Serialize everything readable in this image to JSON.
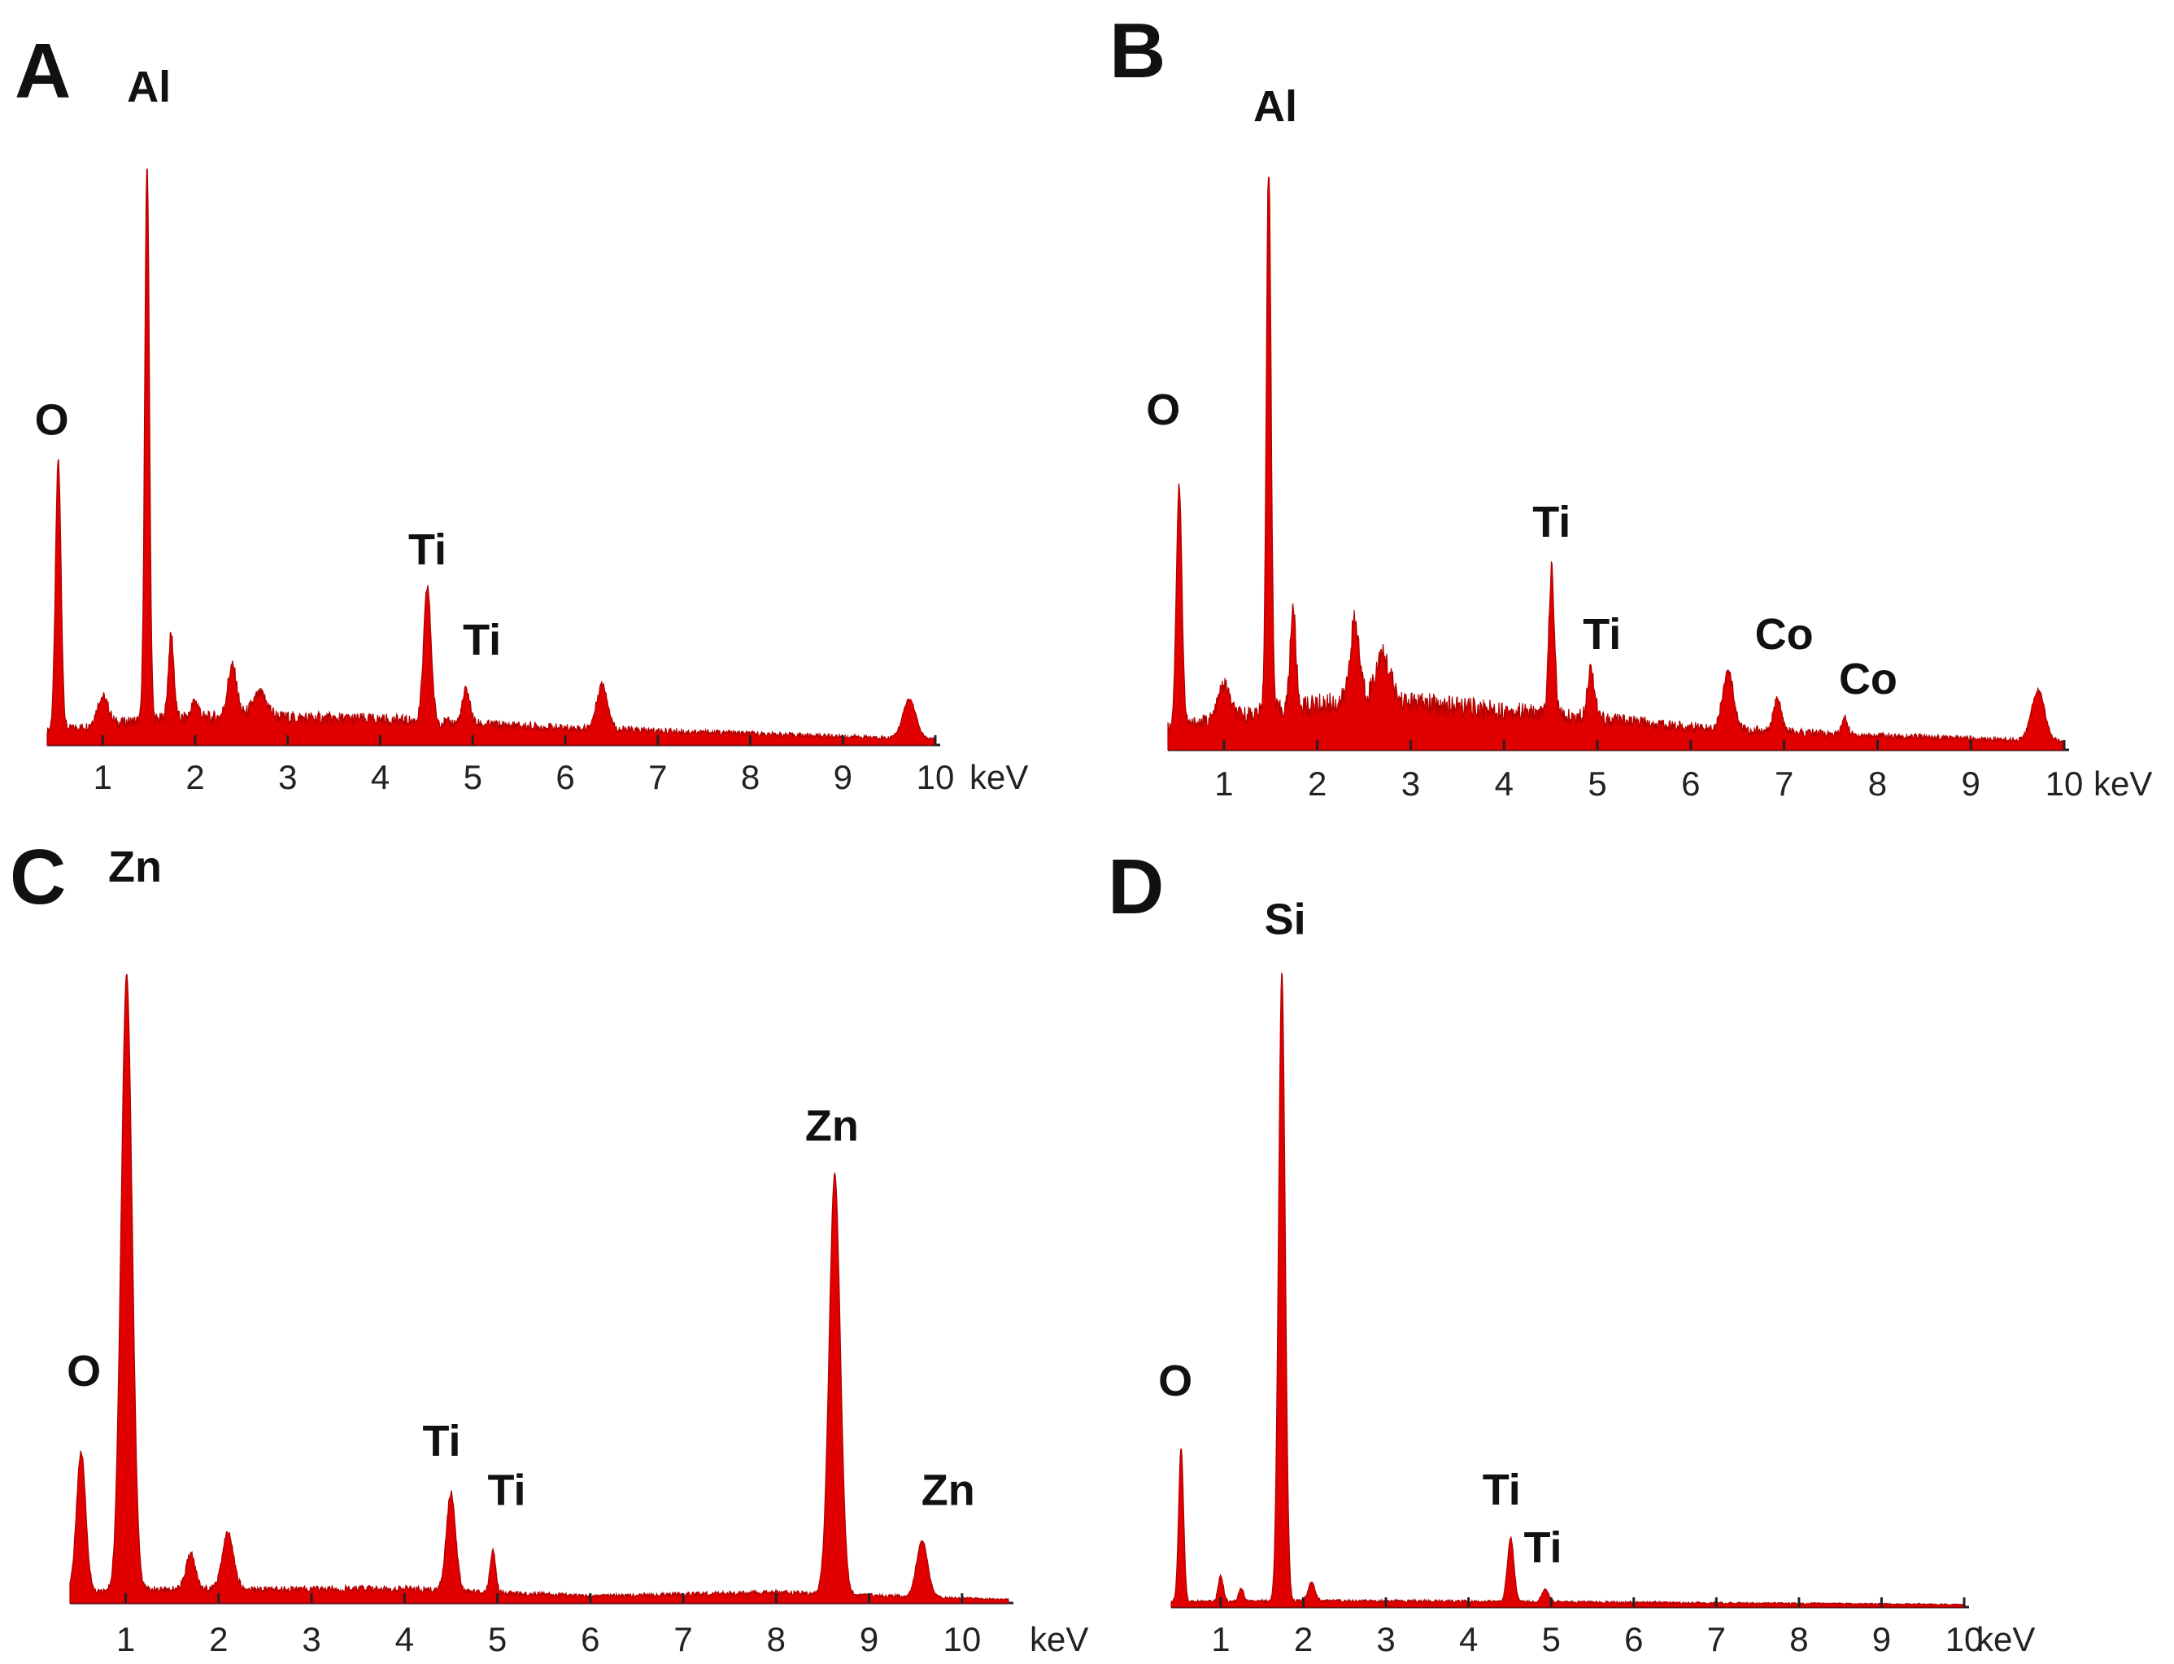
{
  "chart_data": [
    {
      "panel": "A",
      "type": "area",
      "xunit": "keV",
      "xlim": [
        0.4,
        10.0
      ],
      "ylim": [
        0,
        100
      ],
      "xticks": [
        "1",
        "2",
        "3",
        "4",
        "5",
        "6",
        "7",
        "8",
        "9",
        "10"
      ],
      "color": "#e00000",
      "peaks": [
        {
          "x": 0.52,
          "y": 48,
          "w": 0.03
        },
        {
          "x": 1.0,
          "y": 5,
          "w": 0.06
        },
        {
          "x": 1.48,
          "y": 100,
          "w": 0.025
        },
        {
          "x": 1.74,
          "y": 15,
          "w": 0.03
        },
        {
          "x": 2.0,
          "y": 3,
          "w": 0.04
        },
        {
          "x": 2.4,
          "y": 9,
          "w": 0.05
        },
        {
          "x": 2.7,
          "y": 4,
          "w": 0.08
        },
        {
          "x": 4.51,
          "y": 24,
          "w": 0.04
        },
        {
          "x": 4.93,
          "y": 6,
          "w": 0.04
        },
        {
          "x": 6.4,
          "y": 8,
          "w": 0.06
        },
        {
          "x": 9.72,
          "y": 7,
          "w": 0.07
        }
      ],
      "baseline": [
        [
          0.4,
          2.5
        ],
        [
          1.5,
          4.5
        ],
        [
          2.5,
          5
        ],
        [
          4.0,
          4.5
        ],
        [
          6.0,
          3
        ],
        [
          8.0,
          2
        ],
        [
          10.0,
          1
        ]
      ],
      "annotations": [
        {
          "text": "O",
          "x": 0.45,
          "y": 55
        },
        {
          "text": "Al",
          "x": 1.5,
          "y": 114
        },
        {
          "text": "Ti",
          "x": 4.51,
          "y": 32
        },
        {
          "text": "Ti",
          "x": 5.1,
          "y": 16
        }
      ]
    },
    {
      "panel": "B",
      "type": "area",
      "xunit": "keV",
      "xlim": [
        0.4,
        10.0
      ],
      "ylim": [
        0,
        100
      ],
      "xticks": [
        "1",
        "2",
        "3",
        "4",
        "5",
        "6",
        "7",
        "8",
        "9",
        "10"
      ],
      "color": "#e00000",
      "peaks": [
        {
          "x": 0.52,
          "y": 43,
          "w": 0.03
        },
        {
          "x": 1.0,
          "y": 6,
          "w": 0.06
        },
        {
          "x": 1.48,
          "y": 100,
          "w": 0.025
        },
        {
          "x": 1.74,
          "y": 18,
          "w": 0.03
        },
        {
          "x": 2.4,
          "y": 14,
          "w": 0.05
        },
        {
          "x": 2.7,
          "y": 8,
          "w": 0.08
        },
        {
          "x": 4.51,
          "y": 26,
          "w": 0.03
        },
        {
          "x": 4.93,
          "y": 9,
          "w": 0.04
        },
        {
          "x": 6.4,
          "y": 10,
          "w": 0.06
        },
        {
          "x": 6.93,
          "y": 6,
          "w": 0.04
        },
        {
          "x": 7.65,
          "y": 3,
          "w": 0.03
        },
        {
          "x": 9.72,
          "y": 9,
          "w": 0.07
        }
      ],
      "baseline": [
        [
          0.4,
          4
        ],
        [
          1.5,
          7
        ],
        [
          2.5,
          9
        ],
        [
          4.0,
          7
        ],
        [
          6.0,
          4
        ],
        [
          8.0,
          2.5
        ],
        [
          10.0,
          1.5
        ]
      ],
      "annotations": [
        {
          "text": "O",
          "x": 0.35,
          "y": 58
        },
        {
          "text": "Al",
          "x": 1.55,
          "y": 112
        },
        {
          "text": "Ti",
          "x": 4.51,
          "y": 38
        },
        {
          "text": "Ti",
          "x": 5.05,
          "y": 18
        },
        {
          "text": "Co",
          "x": 7.0,
          "y": 18
        },
        {
          "text": "Co",
          "x": 7.9,
          "y": 10
        }
      ]
    },
    {
      "panel": "C",
      "type": "area",
      "xunit": "keV",
      "xlim": [
        0.4,
        10.5
      ],
      "ylim": [
        0,
        100
      ],
      "xticks": [
        "1",
        "2",
        "3",
        "4",
        "5",
        "6",
        "7",
        "8",
        "9",
        "10"
      ],
      "color": "#e00000",
      "peaks": [
        {
          "x": 0.52,
          "y": 20,
          "w": 0.05
        },
        {
          "x": 1.01,
          "y": 88,
          "w": 0.06
        },
        {
          "x": 1.7,
          "y": 5,
          "w": 0.05
        },
        {
          "x": 2.1,
          "y": 8,
          "w": 0.06
        },
        {
          "x": 4.5,
          "y": 14,
          "w": 0.05
        },
        {
          "x": 4.95,
          "y": 6,
          "w": 0.03
        },
        {
          "x": 8.63,
          "y": 60,
          "w": 0.06
        },
        {
          "x": 9.57,
          "y": 8,
          "w": 0.06
        }
      ],
      "baseline": [
        [
          0.4,
          1.5
        ],
        [
          1.5,
          2
        ],
        [
          4.0,
          2
        ],
        [
          6.0,
          1
        ],
        [
          8.0,
          1.5
        ],
        [
          10.5,
          0.5
        ]
      ],
      "annotations": [
        {
          "text": "O",
          "x": 0.55,
          "y": 31
        },
        {
          "text": "Zn",
          "x": 1.1,
          "y": 103
        },
        {
          "text": "Ti",
          "x": 4.4,
          "y": 21
        },
        {
          "text": "Ti",
          "x": 5.1,
          "y": 14
        },
        {
          "text": "Zn",
          "x": 8.6,
          "y": 66
        },
        {
          "text": "Zn",
          "x": 9.85,
          "y": 14
        }
      ]
    },
    {
      "panel": "D",
      "type": "area",
      "xunit": "keV",
      "xlim": [
        0.4,
        10.0
      ],
      "ylim": [
        0,
        100
      ],
      "xticks": [
        "1",
        "2",
        "3",
        "4",
        "5",
        "6",
        "7",
        "8",
        "9",
        "10"
      ],
      "color": "#e00000",
      "peaks": [
        {
          "x": 0.52,
          "y": 24,
          "w": 0.03
        },
        {
          "x": 1.0,
          "y": 4,
          "w": 0.03
        },
        {
          "x": 1.25,
          "y": 2,
          "w": 0.03
        },
        {
          "x": 1.74,
          "y": 98,
          "w": 0.04
        },
        {
          "x": 2.1,
          "y": 3,
          "w": 0.04
        },
        {
          "x": 4.51,
          "y": 10,
          "w": 0.04
        },
        {
          "x": 4.93,
          "y": 2,
          "w": 0.04
        }
      ],
      "baseline": [
        [
          0.4,
          0.8
        ],
        [
          2.0,
          1
        ],
        [
          5.0,
          0.8
        ],
        [
          10.0,
          0.4
        ]
      ],
      "annotations": [
        {
          "text": "O",
          "x": 0.45,
          "y": 33
        },
        {
          "text": "Si",
          "x": 1.78,
          "y": 105
        },
        {
          "text": "Ti",
          "x": 4.4,
          "y": 16
        },
        {
          "text": "Ti",
          "x": 4.9,
          "y": 7
        }
      ]
    }
  ],
  "panels": {
    "a_label": "A",
    "b_label": "B",
    "c_label": "C",
    "d_label": "D",
    "unit": "keV"
  }
}
